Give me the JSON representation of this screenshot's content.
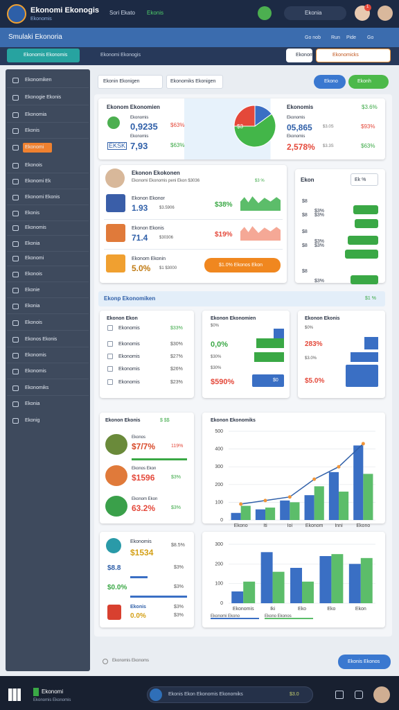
{
  "topbar": {
    "title": "Ekonomi Ekonogis",
    "subtitle": "Ekonomis",
    "nav": "Sori Ekato",
    "nav_active": "Ekonis",
    "search": "Ekonia",
    "badge": "1"
  },
  "subbar": {
    "title": "Smulaki Ekonoria",
    "links": [
      "Go nob",
      "Run",
      "Pide",
      "Go"
    ]
  },
  "toolbar": {
    "button": "Ekonomis Ekonomis",
    "path": "Ekonomi Ekonogis",
    "actions": [
      "Ekonomis",
      "Ekonomicks"
    ]
  },
  "sidebar": {
    "items": [
      "Ekonomiken",
      "Ekonogie Ekonis",
      "Ekonomia",
      "Ekonis",
      "Ekonomi",
      "Ekonois",
      "Ekonomi Ek",
      "Ekonomi Ekonis",
      "Ekonis",
      "Ekonomis",
      "Ekonia",
      "Ekonomi",
      "Ekonois",
      "Ekonie",
      "Ekonia",
      "Ekonois",
      "Ekonos Ekonis",
      "Ekonomis",
      "Ekonomis",
      "Ekonomiks",
      "Ekonia",
      "Ekonig"
    ],
    "active": 4
  },
  "filters": {
    "dropdowns": [
      "Ekonin Ekonigen",
      "Ekonomiks Ekonigen"
    ],
    "buttons": [
      "Ekono",
      "Ekonh"
    ]
  },
  "summary": {
    "title": "Ekonom Ekonomien",
    "left": [
      {
        "label": "Ekonomis",
        "value": "0,9235",
        "change": "$63%"
      },
      {
        "label": "Ekonomis",
        "tag": "EKSK",
        "value": "7,93",
        "change": "$63%"
      }
    ],
    "pie": {
      "values": [
        15,
        60,
        25
      ],
      "colors": [
        "#3a6fc4",
        "#43b649",
        "#e4483a"
      ],
      "label": "$3"
    },
    "right_title": "Ekonomis",
    "right_change": "$3.6%",
    "right": [
      {
        "label": "Ekonomis",
        "value": "05,865",
        "note": "$3.0S",
        "change": "$93%"
      },
      {
        "label": "Ekonomis",
        "value": "2,578%",
        "note": "$3.3S",
        "change": "$63%"
      }
    ]
  },
  "card_a": {
    "title": "Ekonon Ekokonen",
    "subtitle": "Ekonomi Ekonomis peni Ekon $3036",
    "badge": "$3 %",
    "rows": [
      {
        "title": "Ekonon Ekonor",
        "value": "1.93",
        "note": "$3.5906",
        "change": "$38%"
      },
      {
        "title": "Ekonon Ekonis",
        "value": "71.4",
        "note": "$30306",
        "change": "$19%"
      },
      {
        "title": "Ekonom Ekonin",
        "value": "5.0%",
        "note": "$1  $3000",
        "button": "$1.0%   Ekonos Ekon"
      }
    ]
  },
  "card_b": {
    "title": "Ekon",
    "chip": "Ek %",
    "rows": [
      [
        "$8",
        "$3%"
      ],
      [
        "$8",
        "$3%"
      ],
      [
        "$8",
        "$3%"
      ],
      [
        "$8",
        "$3%"
      ],
      [
        "$8",
        "$3%"
      ]
    ]
  },
  "section": {
    "title": "Ekonp Ekonomiken",
    "badge": "$1 %",
    "list": {
      "title": "Ekonon Ekon",
      "rows": [
        [
          "Ekonomis",
          "$33%"
        ],
        [
          "Ekonomis",
          "$30%"
        ],
        [
          "Ekonomis",
          "$27%"
        ],
        [
          "Ekonomis",
          "$26%"
        ],
        [
          "Ekonomis",
          "$23%"
        ]
      ]
    },
    "mid": {
      "title": "Ekonon Ekonomien",
      "lines": [
        "$0%",
        "0,0%",
        "$30%",
        "$30%",
        "$590%"
      ],
      "bar_label": "$0"
    },
    "right": {
      "title": "Ekonon Ekonis",
      "lines": [
        "$0%",
        "283%",
        "$3.0%",
        "$5.0%"
      ]
    }
  },
  "bottom_left": {
    "title": "Ekonon Ekonis",
    "badge": "$ $$",
    "rows": [
      {
        "label": "Ekonos",
        "value": "$7/7%",
        "change": "119%"
      },
      {
        "label": "Ekonos Ekon",
        "value": "$1596",
        "change": "$3%"
      },
      {
        "label": "Ekonom Ekon",
        "value": "63.2%",
        "change": "$3%"
      }
    ]
  },
  "bottom_left2": {
    "title": "Ekonomis",
    "value": "$1534",
    "change": "$8.5%",
    "rows": [
      {
        "label": "$8.8",
        "value": "$3%"
      },
      {
        "label": "$0.0%",
        "value": "$3%"
      },
      {
        "label": "Ekonis",
        "value": "$3%"
      },
      {
        "label": "0.0%",
        "value": "$3%"
      }
    ]
  },
  "chart_data": [
    {
      "type": "bar",
      "title": "Ekonon Ekonomiks",
      "categories": [
        "Ekono",
        "Iti",
        "Ioi",
        "Ekonom",
        "Inni",
        "Ekono"
      ],
      "series": [
        {
          "color": "#3a6fc4",
          "values": [
            40,
            60,
            110,
            140,
            270,
            420
          ]
        },
        {
          "color": "#5cbd6a",
          "values": [
            80,
            70,
            100,
            190,
            160,
            260
          ]
        }
      ],
      "line": {
        "color": "#2f5fa8",
        "marker": "#f0953a",
        "values": [
          90,
          110,
          130,
          230,
          300,
          430
        ]
      },
      "ylim": [
        0,
        500
      ],
      "yticks": [
        0,
        100,
        200,
        300,
        400,
        500
      ],
      "grid": true
    },
    {
      "type": "bar",
      "categories": [
        "Ekonomis",
        "Iki",
        "Eko",
        "Eko",
        "Ekon"
      ],
      "series": [
        {
          "name": "Ekonomi Ekono",
          "color": "#3a6fc4",
          "values": [
            60,
            260,
            180,
            240,
            200
          ]
        },
        {
          "name": "Ekono Ekonos",
          "color": "#5cbd6a",
          "values": [
            110,
            160,
            110,
            250,
            230
          ]
        }
      ],
      "ylim": [
        0,
        300
      ],
      "yticks": [
        0,
        100,
        200,
        300
      ],
      "grid": true
    }
  ],
  "footer": {
    "note": "Ekonomis Ekonoms",
    "button": "Ekonis Ekonos"
  },
  "taskbar": {
    "app": "Ekonomi",
    "app_sub": "Ekonomis Ekonomis",
    "search": "Ekonis Ekon   Ekonomis Ekonomiks",
    "value": "$3.0"
  }
}
